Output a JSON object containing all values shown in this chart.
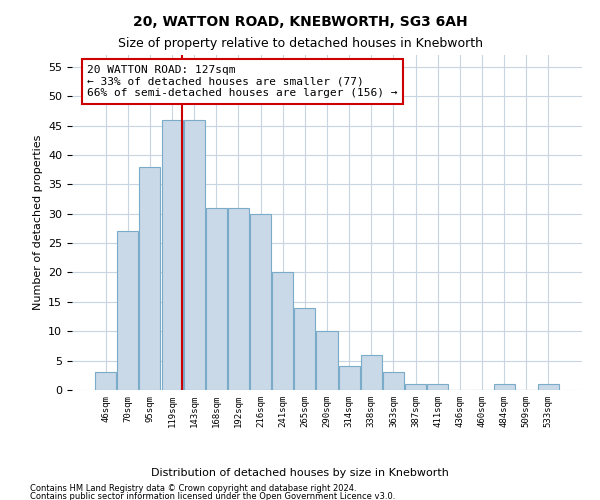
{
  "title1": "20, WATTON ROAD, KNEBWORTH, SG3 6AH",
  "title2": "Size of property relative to detached houses in Knebworth",
  "xlabel": "Distribution of detached houses by size in Knebworth",
  "ylabel": "Number of detached properties",
  "bar_values": [
    3,
    27,
    38,
    46,
    46,
    31,
    31,
    30,
    20,
    14,
    10,
    4,
    6,
    3,
    1,
    1,
    0,
    0,
    1,
    0,
    1
  ],
  "bar_labels": [
    "46sqm",
    "70sqm",
    "95sqm",
    "119sqm",
    "143sqm",
    "168sqm",
    "192sqm",
    "216sqm",
    "241sqm",
    "265sqm",
    "290sqm",
    "314sqm",
    "338sqm",
    "363sqm",
    "387sqm",
    "411sqm",
    "436sqm",
    "460sqm",
    "484sqm",
    "509sqm",
    "533sqm"
  ],
  "bar_color": "#c9d9e8",
  "bar_edge_color": "#7aabc8",
  "property_line_x": 3.47,
  "property_line_color": "#cc0000",
  "annotation_text": "20 WATTON ROAD: 127sqm\n← 33% of detached houses are smaller (77)\n66% of semi-detached houses are larger (156) →",
  "annotation_box_color": "#ffffff",
  "annotation_box_edge": "#cc0000",
  "ylim": [
    0,
    57
  ],
  "yticks": [
    0,
    5,
    10,
    15,
    20,
    25,
    30,
    35,
    40,
    45,
    50,
    55
  ],
  "footnote1": "Contains HM Land Registry data © Crown copyright and database right 2024.",
  "footnote2": "Contains public sector information licensed under the Open Government Licence v3.0.",
  "bg_color": "#ffffff",
  "grid_color": "#c8d4e0"
}
